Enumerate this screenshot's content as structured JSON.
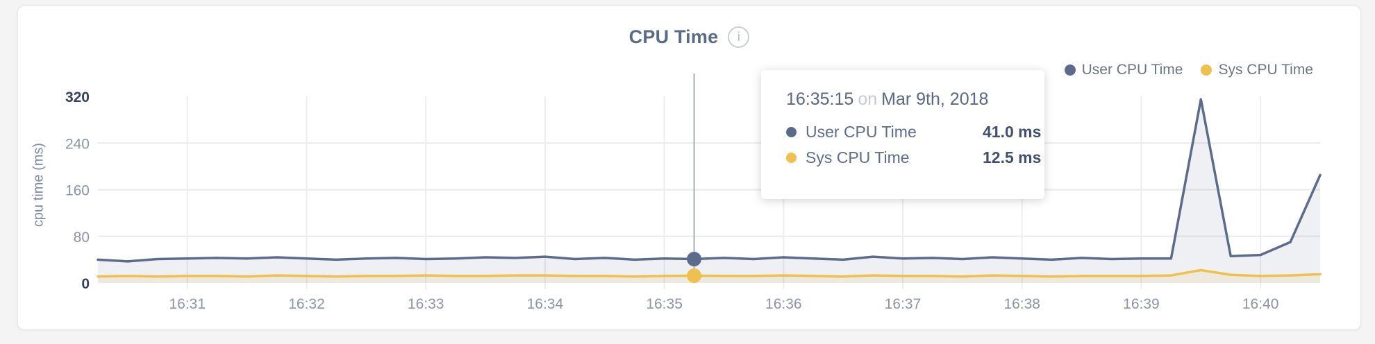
{
  "title": "CPU Time",
  "info_icon_glyph": "i",
  "legend": [
    {
      "label": "User CPU Time",
      "color": "#5d6b8a"
    },
    {
      "label": "Sys CPU Time",
      "color": "#edc04f"
    }
  ],
  "tooltip": {
    "time": "16:35:15",
    "connector": "on",
    "date": "Mar 9th, 2018",
    "rows": [
      {
        "label": "User CPU Time",
        "value": "41.0 ms",
        "color": "#5d6b8a"
      },
      {
        "label": "Sys CPU Time",
        "value": "12.5 ms",
        "color": "#edc04f"
      }
    ]
  },
  "chart_data": {
    "type": "line",
    "title": "CPU Time",
    "ylabel": "cpu time (ms)",
    "ylim": [
      0,
      320
    ],
    "yticks": [
      0,
      80,
      160,
      240,
      320
    ],
    "xticks": [
      "16:31",
      "16:32",
      "16:33",
      "16:34",
      "16:35",
      "16:36",
      "16:37",
      "16:38",
      "16:39",
      "16:40"
    ],
    "grid": true,
    "legend_position": "top-right",
    "grid_color": "#e9eaec",
    "vgrid_color": "#ededee",
    "crosshair_color": "#a8acb4",
    "x": [
      "16:30:15",
      "16:30:30",
      "16:30:45",
      "16:31:00",
      "16:31:15",
      "16:31:30",
      "16:31:45",
      "16:32:00",
      "16:32:15",
      "16:32:30",
      "16:32:45",
      "16:33:00",
      "16:33:15",
      "16:33:30",
      "16:33:45",
      "16:34:00",
      "16:34:15",
      "16:34:30",
      "16:34:45",
      "16:35:00",
      "16:35:15",
      "16:35:30",
      "16:35:45",
      "16:36:00",
      "16:36:15",
      "16:36:30",
      "16:36:45",
      "16:37:00",
      "16:37:15",
      "16:37:30",
      "16:37:45",
      "16:38:00",
      "16:38:15",
      "16:38:30",
      "16:38:45",
      "16:39:00",
      "16:39:15",
      "16:39:30",
      "16:39:45",
      "16:40:00",
      "16:40:15",
      "16:40:30"
    ],
    "series": [
      {
        "name": "User CPU Time",
        "color": "#5d6b8a",
        "fill": "rgba(93,107,138,0.10)",
        "values": [
          40,
          37,
          41,
          42,
          43,
          42,
          44,
          42,
          40,
          42,
          43,
          41,
          42,
          44,
          43,
          45,
          41,
          43,
          40,
          42,
          41,
          43,
          41,
          44,
          42,
          40,
          45,
          42,
          43,
          41,
          44,
          42,
          40,
          43,
          41,
          42,
          42,
          315,
          46,
          48,
          70,
          185
        ]
      },
      {
        "name": "Sys CPU Time",
        "color": "#edc04f",
        "fill": "rgba(237,192,79,0.12)",
        "values": [
          11,
          12,
          11,
          12,
          12,
          11,
          13,
          12,
          11,
          12,
          12,
          13,
          12,
          12,
          13,
          13,
          12,
          12,
          11,
          12,
          12.5,
          12,
          12,
          13,
          12,
          11,
          13,
          12,
          12,
          11,
          13,
          12,
          11,
          12,
          12,
          12,
          13,
          22,
          14,
          12,
          13,
          15
        ]
      }
    ],
    "hover": {
      "x": "16:35:15",
      "values": [
        41.0,
        12.5
      ]
    }
  }
}
